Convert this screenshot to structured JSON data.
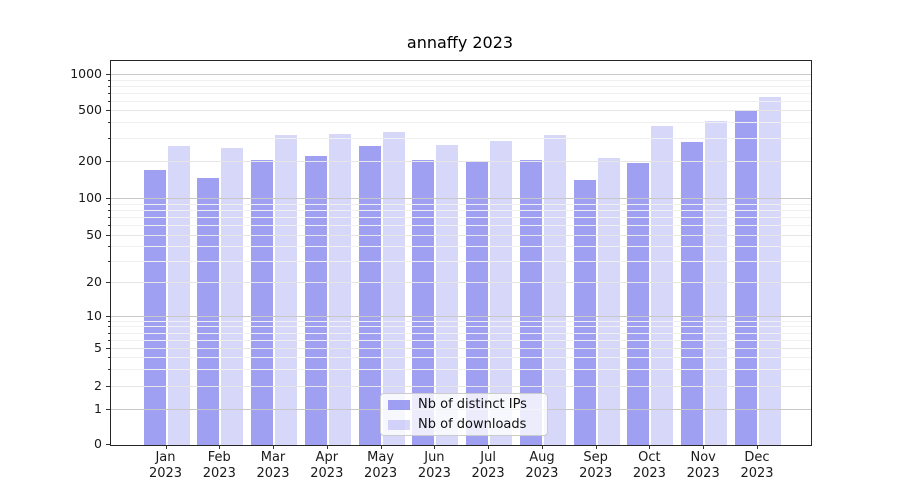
{
  "title": "annaffy 2023",
  "chart_data": {
    "type": "bar",
    "title": "annaffy 2023",
    "categories": [
      "Jan",
      "Feb",
      "Mar",
      "Apr",
      "May",
      "Jun",
      "Jul",
      "Aug",
      "Sep",
      "Oct",
      "Nov",
      "Dec"
    ],
    "year": "2023",
    "series": [
      {
        "name": "Nb of distinct IPs",
        "base_hex": "#7c7cee",
        "css": "rgba(124,124,238,0.72)",
        "values": [
          172,
          148,
          207,
          220,
          265,
          206,
          200,
          207,
          143,
          194,
          285,
          500
        ]
      },
      {
        "name": "Nb of downloads",
        "base_hex": "#7c7cee",
        "css": "rgba(124,124,238,0.30)",
        "values": [
          265,
          255,
          325,
          330,
          340,
          270,
          290,
          325,
          215,
          380,
          415,
          650
        ]
      }
    ],
    "yticks": [
      0,
      1,
      2,
      5,
      10,
      20,
      50,
      100,
      200,
      500,
      1000
    ],
    "xlabel": "",
    "ylabel": "",
    "ylim": [
      0,
      1300
    ],
    "yscale": "pseudo-log (1-2-5 labeled ticks, linear segment between 0 and 1)",
    "grid": true,
    "legend_position": "inside plot, lower center",
    "colors": {
      "major_gridline": "#c8c8c8",
      "mid_gridline": "#e6e6e6",
      "minor_gridline": "#f0f0f0",
      "spine": "#262626",
      "background": "#ffffff"
    }
  }
}
